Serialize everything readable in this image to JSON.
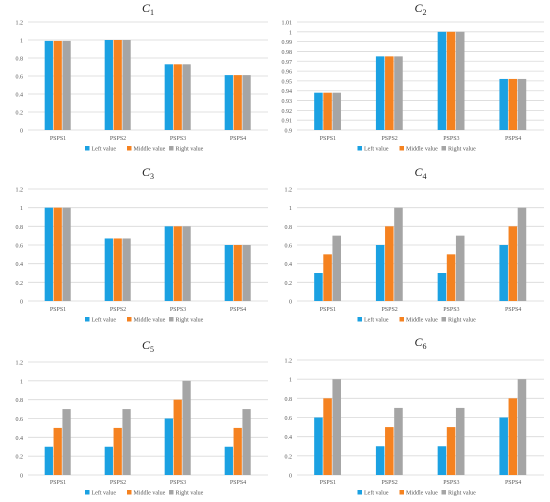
{
  "legend_labels": [
    "Left value",
    "Middle value",
    "Right value"
  ],
  "colors": {
    "left": "#1ba1e2",
    "middle": "#f58220",
    "right": "#a5a5a5",
    "grid": "#d9d9d9",
    "axis_text": "#595959"
  },
  "chart_data": [
    {
      "type": "bar",
      "title": "C",
      "subscript": "1",
      "categories": [
        "PSPS1",
        "PSPS2",
        "PSPS3",
        "PSPS4"
      ],
      "ylim": [
        0,
        1.2
      ],
      "yticks": [
        "0",
        "0.2",
        "0.4",
        "0.6",
        "0.8",
        "1",
        "1.2"
      ],
      "ytick_values": [
        0,
        0.2,
        0.4,
        0.6,
        0.8,
        1,
        1.2
      ],
      "grid": true,
      "legend": "bottom",
      "series": [
        {
          "name": "Left value",
          "values": [
            0.99,
            1.0,
            0.73,
            0.61
          ]
        },
        {
          "name": "Middle value",
          "values": [
            0.99,
            1.0,
            0.73,
            0.61
          ]
        },
        {
          "name": "Right value",
          "values": [
            0.99,
            1.0,
            0.73,
            0.61
          ]
        }
      ]
    },
    {
      "type": "bar",
      "title": "C",
      "subscript": "2",
      "categories": [
        "PSPS1",
        "PSPS2",
        "PSPS3",
        "PSPS4"
      ],
      "ylim": [
        0.9,
        1.01
      ],
      "yticks": [
        "0.9",
        "0.91",
        "0.92",
        "0.93",
        "0.94",
        "0.95",
        "0.96",
        "0.97",
        "0.98",
        "0.99",
        "1",
        "1.01"
      ],
      "ytick_values": [
        0.9,
        0.91,
        0.92,
        0.93,
        0.94,
        0.95,
        0.96,
        0.97,
        0.98,
        0.99,
        1.0,
        1.01
      ],
      "grid": true,
      "legend": "bottom",
      "series": [
        {
          "name": "Left value",
          "values": [
            0.938,
            0.975,
            1.0,
            0.952
          ]
        },
        {
          "name": "Middle value",
          "values": [
            0.938,
            0.975,
            1.0,
            0.952
          ]
        },
        {
          "name": "Right value",
          "values": [
            0.938,
            0.975,
            1.0,
            0.952
          ]
        }
      ]
    },
    {
      "type": "bar",
      "title": "C",
      "subscript": "3",
      "categories": [
        "PSPS1",
        "PSPS2",
        "PSPS3",
        "PSPS4"
      ],
      "ylim": [
        0,
        1.2
      ],
      "yticks": [
        "0",
        "0.2",
        "0.4",
        "0.6",
        "0.8",
        "1",
        "1.2"
      ],
      "ytick_values": [
        0,
        0.2,
        0.4,
        0.6,
        0.8,
        1,
        1.2
      ],
      "grid": true,
      "legend": "bottom",
      "series": [
        {
          "name": "Left value",
          "values": [
            1.0,
            0.67,
            0.8,
            0.6
          ]
        },
        {
          "name": "Middle value",
          "values": [
            1.0,
            0.67,
            0.8,
            0.6
          ]
        },
        {
          "name": "Right value",
          "values": [
            1.0,
            0.67,
            0.8,
            0.6
          ]
        }
      ]
    },
    {
      "type": "bar",
      "title": "C",
      "subscript": "4",
      "categories": [
        "PSPS1",
        "PSPS2",
        "PSPS3",
        "PSPS4"
      ],
      "ylim": [
        0,
        1.2
      ],
      "yticks": [
        "0",
        "0.2",
        "0.4",
        "0.6",
        "0.8",
        "1",
        "1.2"
      ],
      "ytick_values": [
        0,
        0.2,
        0.4,
        0.6,
        0.8,
        1,
        1.2
      ],
      "grid": true,
      "legend": "bottom",
      "series": [
        {
          "name": "Left value",
          "values": [
            0.3,
            0.6,
            0.3,
            0.6
          ]
        },
        {
          "name": "Middle value",
          "values": [
            0.5,
            0.8,
            0.5,
            0.8
          ]
        },
        {
          "name": "Right value",
          "values": [
            0.7,
            1.0,
            0.7,
            1.0
          ]
        }
      ]
    },
    {
      "type": "bar",
      "title": "C",
      "subscript": "5",
      "categories": [
        "PSPS1",
        "PSPS2",
        "PSPS3",
        "PSPS4"
      ],
      "ylim": [
        0,
        1.2
      ],
      "yticks": [
        "0",
        "0.2",
        "0.4",
        "0.6",
        "0.8",
        "1",
        "1.2"
      ],
      "ytick_values": [
        0,
        0.2,
        0.4,
        0.6,
        0.8,
        1,
        1.2
      ],
      "grid": true,
      "legend": "bottom",
      "series": [
        {
          "name": "Left value",
          "values": [
            0.3,
            0.3,
            0.6,
            0.3
          ]
        },
        {
          "name": "Middle value",
          "values": [
            0.5,
            0.5,
            0.8,
            0.5
          ]
        },
        {
          "name": "Right value",
          "values": [
            0.7,
            0.7,
            1.0,
            0.7
          ]
        }
      ]
    },
    {
      "type": "bar",
      "title": "C",
      "subscript": "6",
      "categories": [
        "PSPS1",
        "PSPS2",
        "PSPS3",
        "PSPS4"
      ],
      "ylim": [
        0,
        1.2
      ],
      "yticks": [
        "0",
        "0.2",
        "0.4",
        "0.6",
        "0.8",
        "1",
        "1.2"
      ],
      "ytick_values": [
        0,
        0.2,
        0.4,
        0.6,
        0.8,
        1,
        1.2
      ],
      "grid": true,
      "legend": "bottom",
      "series": [
        {
          "name": "Left value",
          "values": [
            0.6,
            0.3,
            0.3,
            0.6
          ]
        },
        {
          "name": "Middle value",
          "values": [
            0.8,
            0.5,
            0.5,
            0.8
          ]
        },
        {
          "name": "Right value",
          "values": [
            1.0,
            0.7,
            0.7,
            1.0
          ]
        }
      ]
    }
  ]
}
